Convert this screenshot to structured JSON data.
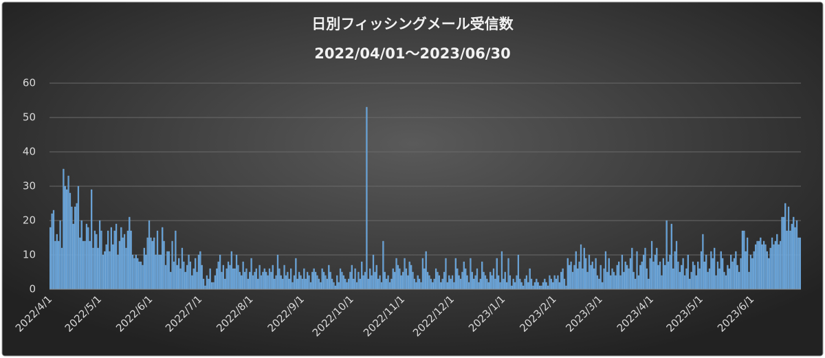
{
  "chart_data": {
    "type": "bar",
    "title": "日別フィッシングメール受信数",
    "subtitle": "2022/04/01～2023/06/30",
    "color": "#5b9bd5",
    "grid": true,
    "ylim": [
      0,
      60
    ],
    "yticks": [
      0,
      10,
      20,
      30,
      40,
      50,
      60
    ],
    "categories": [
      "2022/4/1",
      null,
      null,
      null,
      null,
      null,
      null,
      null,
      null,
      null,
      null,
      null,
      null,
      null,
      null,
      null,
      null,
      null,
      null,
      null,
      null,
      null,
      null,
      null,
      null,
      null,
      null,
      null,
      null,
      null,
      "2022/5/1",
      null,
      null,
      null,
      null,
      null,
      null,
      null,
      null,
      null,
      null,
      null,
      null,
      null,
      null,
      null,
      null,
      null,
      null,
      null,
      null,
      null,
      null,
      null,
      null,
      null,
      null,
      null,
      null,
      null,
      null,
      "2022/6/1",
      null,
      null,
      null,
      null,
      null,
      null,
      null,
      null,
      null,
      null,
      null,
      null,
      null,
      null,
      null,
      null,
      null,
      null,
      null,
      null,
      null,
      null,
      null,
      null,
      null,
      null,
      null,
      null,
      null,
      "2022/7/1",
      null,
      null,
      null,
      null,
      null,
      null,
      null,
      null,
      null,
      null,
      null,
      null,
      null,
      null,
      null,
      null,
      null,
      null,
      null,
      null,
      null,
      null,
      null,
      null,
      null,
      null,
      null,
      null,
      null,
      null,
      "2022/8/1",
      null,
      null,
      null,
      null,
      null,
      null,
      null,
      null,
      null,
      null,
      null,
      null,
      null,
      null,
      null,
      null,
      null,
      null,
      null,
      null,
      null,
      null,
      null,
      null,
      null,
      null,
      null,
      null,
      null,
      null,
      "2022/9/1",
      null,
      null,
      null,
      null,
      null,
      null,
      null,
      null,
      null,
      null,
      null,
      null,
      null,
      null,
      null,
      null,
      null,
      null,
      null,
      null,
      null,
      null,
      null,
      null,
      null,
      null,
      null,
      null,
      null,
      "2022/10/1",
      null,
      null,
      null,
      null,
      null,
      null,
      null,
      null,
      null,
      null,
      null,
      null,
      null,
      null,
      null,
      null,
      null,
      null,
      null,
      null,
      null,
      null,
      null,
      null,
      null,
      null,
      null,
      null,
      null,
      null,
      "2022/11/1",
      null,
      null,
      null,
      null,
      null,
      null,
      null,
      null,
      null,
      null,
      null,
      null,
      null,
      null,
      null,
      null,
      null,
      null,
      null,
      null,
      null,
      null,
      null,
      null,
      null,
      null,
      null,
      null,
      null,
      "2022/12/1",
      null,
      null,
      null,
      null,
      null,
      null,
      null,
      null,
      null,
      null,
      null,
      null,
      null,
      null,
      null,
      null,
      null,
      null,
      null,
      null,
      null,
      null,
      null,
      null,
      null,
      null,
      null,
      null,
      null,
      null,
      "2023/1/1",
      null,
      null,
      null,
      null,
      null,
      null,
      null,
      null,
      null,
      null,
      null,
      null,
      null,
      null,
      null,
      null,
      null,
      null,
      null,
      null,
      null,
      null,
      null,
      null,
      null,
      null,
      null,
      null,
      null,
      null,
      "2023/2/1",
      null,
      null,
      null,
      null,
      null,
      null,
      null,
      null,
      null,
      null,
      null,
      null,
      null,
      null,
      null,
      null,
      null,
      null,
      null,
      null,
      null,
      null,
      null,
      null,
      null,
      null,
      null,
      "2023/3/1",
      null,
      null,
      null,
      null,
      null,
      null,
      null,
      null,
      null,
      null,
      null,
      null,
      null,
      null,
      null,
      null,
      null,
      null,
      null,
      null,
      null,
      null,
      null,
      null,
      null,
      null,
      null,
      null,
      null,
      null,
      "2023/4/1",
      null,
      null,
      null,
      null,
      null,
      null,
      null,
      null,
      null,
      null,
      null,
      null,
      null,
      null,
      null,
      null,
      null,
      null,
      null,
      null,
      null,
      null,
      null,
      null,
      null,
      null,
      null,
      null,
      null,
      "2023/5/1",
      null,
      null,
      null,
      null,
      null,
      null,
      null,
      null,
      null,
      null,
      null,
      null,
      null,
      null,
      null,
      null,
      null,
      null,
      null,
      null,
      null,
      null,
      null,
      null,
      null,
      null,
      null,
      null,
      null,
      null,
      "2023/6/1",
      null,
      null,
      null,
      null,
      null,
      null,
      null,
      null,
      null,
      null,
      null,
      null,
      null,
      null,
      null,
      null,
      null,
      null,
      null,
      null,
      null,
      null,
      null,
      null,
      null,
      null,
      null,
      null,
      null
    ],
    "values": [
      18,
      22,
      23,
      14,
      16,
      14,
      20,
      12,
      35,
      30,
      29,
      33,
      28,
      24,
      19,
      24,
      25,
      30,
      15,
      20,
      14,
      14,
      19,
      18,
      14,
      29,
      12,
      17,
      16,
      12,
      20,
      17,
      10,
      11,
      13,
      17,
      11,
      18,
      13,
      17,
      19,
      10,
      14,
      18,
      15,
      16,
      12,
      17,
      21,
      17,
      10,
      9,
      10,
      9,
      8,
      8,
      7,
      12,
      10,
      15,
      20,
      15,
      14,
      15,
      10,
      17,
      10,
      10,
      18,
      14,
      7,
      11,
      11,
      5,
      14,
      8,
      17,
      7,
      9,
      6,
      12,
      8,
      5,
      7,
      10,
      8,
      4,
      6,
      9,
      5,
      10,
      11,
      7,
      3,
      1,
      4,
      3,
      6,
      2,
      2,
      4,
      6,
      8,
      10,
      5,
      7,
      3,
      6,
      8,
      7,
      11,
      6,
      6,
      10,
      7,
      5,
      4,
      8,
      5,
      6,
      3,
      5,
      9,
      4,
      5,
      6,
      3,
      7,
      4,
      5,
      6,
      5,
      4,
      6,
      5,
      7,
      3,
      4,
      10,
      6,
      4,
      3,
      7,
      4,
      5,
      3,
      6,
      2,
      4,
      9,
      3,
      5,
      4,
      3,
      6,
      3,
      5,
      4,
      2,
      5,
      6,
      5,
      4,
      3,
      2,
      6,
      5,
      4,
      3,
      7,
      5,
      3,
      2,
      1,
      4,
      2,
      6,
      5,
      4,
      3,
      2,
      3,
      5,
      7,
      3,
      6,
      2,
      5,
      3,
      8,
      4,
      5,
      53,
      3,
      6,
      4,
      10,
      5,
      7,
      3,
      4,
      2,
      14,
      5,
      3,
      4,
      2,
      3,
      6,
      5,
      9,
      7,
      6,
      4,
      5,
      9,
      6,
      4,
      8,
      7,
      5,
      3,
      2,
      4,
      3,
      2,
      9,
      6,
      11,
      5,
      4,
      3,
      2,
      3,
      6,
      5,
      4,
      2,
      3,
      5,
      9,
      2,
      4,
      3,
      4,
      2,
      9,
      6,
      4,
      3,
      5,
      8,
      6,
      4,
      2,
      9,
      5,
      3,
      4,
      6,
      2,
      3,
      8,
      5,
      4,
      3,
      2,
      5,
      4,
      6,
      3,
      9,
      4,
      2,
      11,
      3,
      5,
      2,
      9,
      4,
      1,
      3,
      2,
      4,
      10,
      3,
      2,
      1,
      3,
      4,
      2,
      6,
      3,
      1,
      2,
      3,
      2,
      1,
      1,
      2,
      3,
      2,
      1,
      4,
      3,
      2,
      4,
      3,
      4,
      2,
      5,
      6,
      3,
      1,
      9,
      7,
      8,
      5,
      7,
      11,
      6,
      8,
      13,
      6,
      12,
      9,
      5,
      10,
      7,
      8,
      6,
      9,
      4,
      3,
      7,
      2,
      6,
      11,
      5,
      9,
      4,
      6,
      5,
      4,
      7,
      8,
      4,
      10,
      5,
      8,
      7,
      6,
      9,
      12,
      5,
      3,
      11,
      4,
      7,
      8,
      10,
      12,
      6,
      3,
      9,
      14,
      8,
      10,
      12,
      7,
      8,
      4,
      9,
      7,
      20,
      8,
      10,
      19,
      6,
      11,
      14,
      8,
      5,
      7,
      9,
      4,
      6,
      10,
      3,
      5,
      8,
      7,
      4,
      8,
      6,
      11,
      16,
      8,
      10,
      5,
      6,
      11,
      9,
      12,
      4,
      8,
      6,
      11,
      9,
      5,
      4,
      7,
      6,
      10,
      8,
      9,
      11,
      7,
      5,
      9,
      17,
      17,
      11,
      15,
      5,
      10,
      9,
      11,
      13,
      14,
      14,
      15,
      13,
      14,
      13,
      11,
      9,
      12,
      15,
      13,
      14,
      16,
      13,
      14,
      21,
      21,
      25,
      17,
      24,
      17,
      19,
      21,
      18,
      20,
      15,
      15
    ]
  }
}
